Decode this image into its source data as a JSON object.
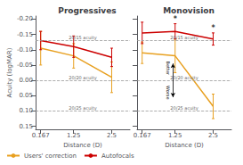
{
  "chart_data": [
    {
      "type": "line",
      "title": "Progressives",
      "xlabel": "Distance (D)",
      "ylabel": "Acuity (logMAR)",
      "x": [
        0.167,
        1.25,
        2.5
      ],
      "series": [
        {
          "name": "Users' correction",
          "color": "#e8a020",
          "values": [
            -0.105,
            -0.08,
            -0.01
          ],
          "errors": [
            0.055,
            0.04,
            0.05
          ]
        },
        {
          "name": "Autofocals",
          "color": "#cc0000",
          "values": [
            -0.13,
            -0.11,
            -0.075
          ],
          "errors": [
            0.03,
            0.035,
            0.03
          ]
        }
      ],
      "xlim": [
        0.0,
        3.1
      ],
      "xticks": [
        0.167,
        1.25,
        2.5
      ],
      "ylim": [
        0.16,
        -0.21
      ],
      "yticks": [
        {
          "value": -0.2,
          "label": "-0.20"
        },
        {
          "value": -0.15,
          "label": "-0.15"
        },
        {
          "value": -0.1,
          "label": "-0.10"
        },
        {
          "value": -0.05,
          "label": "-0.05"
        },
        {
          "value": 0.0,
          "label": "0.00"
        },
        {
          "value": 0.05,
          "label": "0.05"
        },
        {
          "value": 0.1,
          "label": "0.10"
        },
        {
          "value": 0.15,
          "label": "0.15"
        }
      ],
      "hlines": [
        {
          "value": -0.125,
          "label": "20/15 acuity",
          "color": "#999999"
        },
        {
          "value": 0.0,
          "label": "20/20 acuity",
          "color": "#999999"
        },
        {
          "value": 0.1,
          "label": "20/25 acuity",
          "color": "#999999"
        }
      ],
      "legend": "lower left",
      "grid": false
    },
    {
      "type": "line",
      "title": "Monovision",
      "xlabel": "Distance (D)",
      "x": [
        0.167,
        1.25,
        2.5
      ],
      "series": [
        {
          "name": "Users' correction",
          "color": "#e8a020",
          "values": [
            -0.09,
            -0.08,
            0.085
          ],
          "errors": [
            0.035,
            0.055,
            0.04
          ]
        },
        {
          "name": "Autofocals",
          "color": "#cc0000",
          "values": [
            -0.155,
            -0.16,
            -0.135
          ],
          "errors": [
            0.035,
            0.025,
            0.02
          ]
        }
      ],
      "xlim": [
        0.0,
        3.1
      ],
      "xticks": [
        0.167,
        1.25,
        2.5
      ],
      "ylim": [
        0.16,
        -0.21
      ],
      "yticks": [
        -0.2,
        -0.15,
        -0.1,
        -0.05,
        0.0,
        0.05,
        0.1,
        0.15
      ],
      "tick_labels": "x",
      "hlines": [
        {
          "value": -0.125,
          "label": "20/15 acuity",
          "color": "#999999"
        },
        {
          "value": 0.0,
          "label": "20/20 acuity",
          "color": "#999999"
        },
        {
          "value": 0.1,
          "label": "20/25 acuity",
          "color": "#999999"
        }
      ],
      "annotations": [
        {
          "text": "*",
          "x": 1.25,
          "y": -0.188
        },
        {
          "text": "*",
          "x": 2.5,
          "y": -0.158
        }
      ],
      "arrow": {
        "x": 1.18,
        "from": 0.055,
        "to": -0.055,
        "labels": [
          {
            "text": "Better",
            "x": 1.22,
            "y": -0.04
          },
          {
            "text": "Worse",
            "x": 1.22,
            "y": 0.04
          }
        ]
      },
      "grid": false
    }
  ]
}
